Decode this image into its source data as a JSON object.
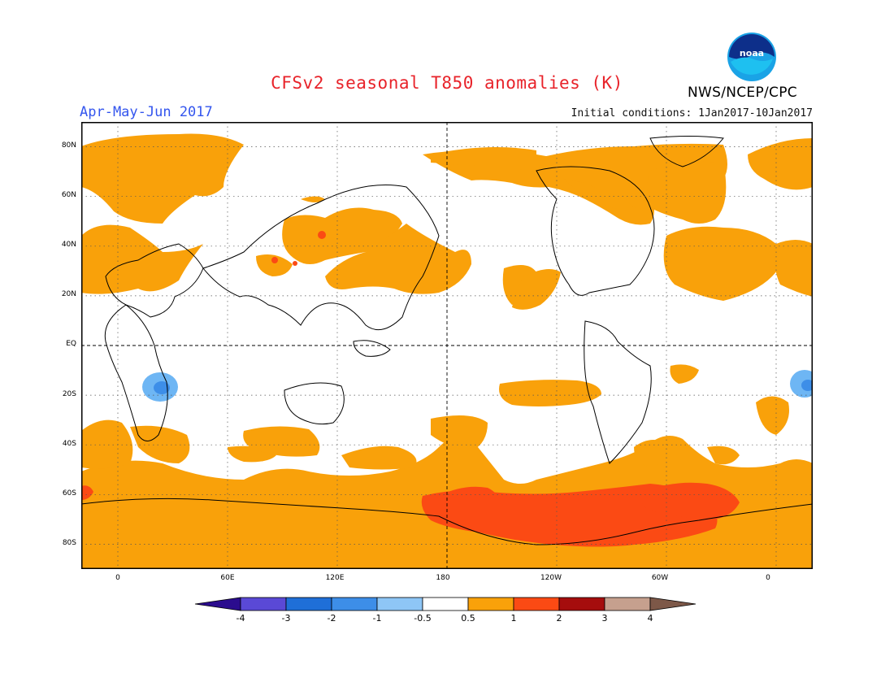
{
  "header": {
    "title": "CFSv2 seasonal T850 anomalies (K)",
    "period": "Apr-May-Jun 2017",
    "initial_conditions": "Initial conditions: 1Jan2017-10Jan2017",
    "agency": "NWS/NCEP/CPC",
    "logo_text": "noaa"
  },
  "map": {
    "projection": "equirectangular",
    "lon_range": [
      -20,
      380
    ],
    "lat_range": [
      -90,
      90
    ],
    "lat_ticks": [
      {
        "label": "80N"
      },
      {
        "label": "60N"
      },
      {
        "label": "40N"
      },
      {
        "label": "20N"
      },
      {
        "label": "EQ"
      },
      {
        "label": "20S"
      },
      {
        "label": "40S"
      },
      {
        "label": "60S"
      },
      {
        "label": "80S"
      }
    ],
    "lon_ticks": [
      {
        "label": "0"
      },
      {
        "label": "60E"
      },
      {
        "label": "120E"
      },
      {
        "label": "180"
      },
      {
        "label": "120W"
      },
      {
        "label": "60W"
      },
      {
        "label": "0"
      }
    ],
    "grid": "dotted",
    "reference_lines": [
      "equator",
      "dateline"
    ],
    "anomaly_colors": {
      "pos_0_5_1": "#f9a10a",
      "pos_1_2": "#fb4a14",
      "pos_2_3": "#a50d0d",
      "neg_0_5_1": "#6eb6f4",
      "neg_1_2": "#3d8ee8"
    }
  },
  "colorbar": {
    "labels": [
      "-4",
      "-3",
      "-2",
      "-1",
      "-0.5",
      "0.5",
      "1",
      "2",
      "3",
      "4"
    ],
    "colors": [
      "#2b0c8e",
      "#5a49d6",
      "#1f6fd8",
      "#3d8ee8",
      "#8ec6f6",
      "#ffffff",
      "#f9a10a",
      "#fb4a14",
      "#a50d0d",
      "#c6a08e",
      "#7d5848"
    ]
  }
}
